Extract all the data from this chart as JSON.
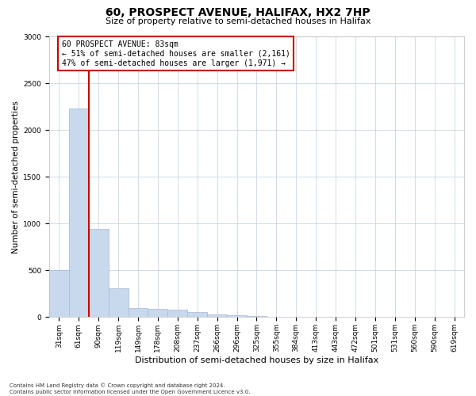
{
  "title": "60, PROSPECT AVENUE, HALIFAX, HX2 7HP",
  "subtitle": "Size of property relative to semi-detached houses in Halifax",
  "xlabel": "Distribution of semi-detached houses by size in Halifax",
  "ylabel": "Number of semi-detached properties",
  "bar_labels": [
    "31sqm",
    "61sqm",
    "90sqm",
    "119sqm",
    "149sqm",
    "178sqm",
    "208sqm",
    "237sqm",
    "266sqm",
    "296sqm",
    "325sqm",
    "355sqm",
    "384sqm",
    "413sqm",
    "443sqm",
    "472sqm",
    "501sqm",
    "531sqm",
    "560sqm",
    "590sqm",
    "619sqm"
  ],
  "bar_values": [
    500,
    2230,
    940,
    310,
    100,
    90,
    80,
    55,
    25,
    20,
    10,
    0,
    0,
    0,
    0,
    0,
    0,
    0,
    0,
    0,
    0
  ],
  "bar_color": "#c9d9ed",
  "bar_edge_color": "#a0b8d8",
  "property_line_color": "#cc0000",
  "annotation_title": "60 PROSPECT AVENUE: 83sqm",
  "annotation_line1": "← 51% of semi-detached houses are smaller (2,161)",
  "annotation_line2": "47% of semi-detached houses are larger (1,971) →",
  "annotation_box_color": "#ffffff",
  "annotation_box_edge": "#cc0000",
  "ylim": [
    0,
    3000
  ],
  "yticks": [
    0,
    500,
    1000,
    1500,
    2000,
    2500,
    3000
  ],
  "footer_line1": "Contains HM Land Registry data © Crown copyright and database right 2024.",
  "footer_line2": "Contains public sector information licensed under the Open Government Licence v3.0.",
  "background_color": "#ffffff",
  "grid_color": "#c0cfe0",
  "title_fontsize": 10,
  "subtitle_fontsize": 8,
  "ylabel_fontsize": 7.5,
  "xlabel_fontsize": 8,
  "tick_fontsize": 6.5,
  "ann_fontsize": 7,
  "footer_fontsize": 5
}
